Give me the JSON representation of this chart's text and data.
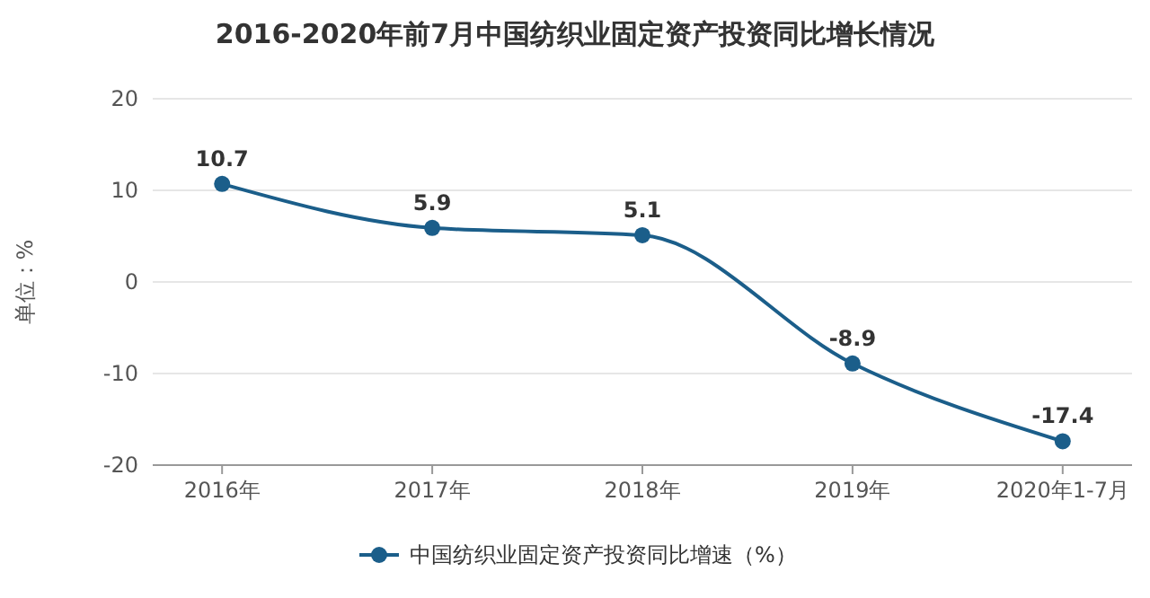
{
  "chart_data": {
    "type": "line",
    "title": "2016-2020年前7月中国纺织业固定资产投资同比增长情况",
    "ylabel": "单位：%",
    "categories": [
      "2016年",
      "2017年",
      "2018年",
      "2019年",
      "2020年1-7月"
    ],
    "series": [
      {
        "name": "中国纺织业固定资产投资同比增速（%）",
        "color": "#1b5e8a",
        "values": [
          10.7,
          5.9,
          5.1,
          -8.9,
          -17.4
        ]
      }
    ],
    "ylim": [
      -20,
      20
    ],
    "yticks": [
      -20,
      -10,
      0,
      10,
      20
    ],
    "grid": "y",
    "legend": "bottom",
    "marker": "circle",
    "line_style": "solid",
    "data_labels": true
  }
}
